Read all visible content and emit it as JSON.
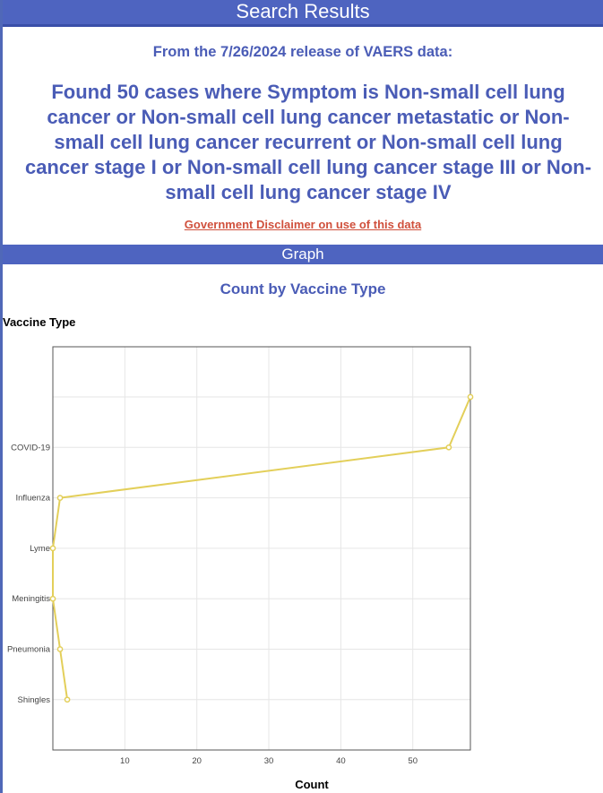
{
  "header": {
    "title": "Search Results"
  },
  "release_line": "From the 7/26/2024 release of VAERS data:",
  "found_text": "Found 50 cases where Symptom is Non-small cell lung cancer or Non-small cell lung cancer metastatic or Non-small cell lung cancer recurrent or Non-small cell lung cancer stage I or Non-small cell lung cancer stage III or Non-small cell lung cancer stage IV",
  "disclaimer_link": "Government Disclaimer on use of this data",
  "graph_bar": "Graph",
  "colors": {
    "header_bg": "#4e64c0",
    "heading_text": "#4a5cb6",
    "link": "#d0503c",
    "series_line": "#e3cf5a"
  },
  "chart_data": {
    "type": "line",
    "title": "Count by Vaccine Type",
    "ylabel": "Vaccine Type",
    "xlabel": "Count",
    "orientation": "horizontal",
    "categories": [
      "",
      "COVID-19",
      "Influenza",
      "Lyme",
      "Meningitis",
      "Pneumonia",
      "Shingles"
    ],
    "values": [
      58,
      55,
      1,
      0,
      0,
      1,
      2
    ],
    "x_ticks": [
      10,
      20,
      30,
      40,
      50
    ],
    "xlim": [
      0,
      58
    ],
    "grid": true,
    "legend": "none"
  }
}
